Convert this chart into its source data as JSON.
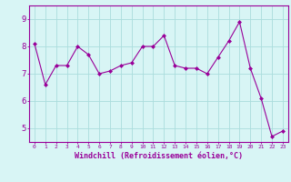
{
  "x": [
    0,
    1,
    2,
    3,
    4,
    5,
    6,
    7,
    8,
    9,
    10,
    11,
    12,
    13,
    14,
    15,
    16,
    17,
    18,
    19,
    20,
    21,
    22,
    23
  ],
  "y": [
    8.1,
    6.6,
    7.3,
    7.3,
    8.0,
    7.7,
    7.0,
    7.1,
    7.3,
    7.4,
    8.0,
    8.0,
    8.4,
    7.3,
    7.2,
    7.2,
    7.0,
    7.6,
    8.2,
    8.9,
    7.2,
    6.1,
    4.7,
    4.9
  ],
  "line_color": "#990099",
  "marker": "D",
  "marker_size": 2,
  "bg_color": "#d8f5f5",
  "grid_color": "#aadddd",
  "axis_color": "#990099",
  "tick_color": "#990099",
  "xlabel": "Windchill (Refroidissement éolien,°C)",
  "xlabel_fontsize": 6,
  "ylim": [
    4.5,
    9.5
  ],
  "yticks": [
    5,
    6,
    7,
    8,
    9
  ],
  "title": ""
}
